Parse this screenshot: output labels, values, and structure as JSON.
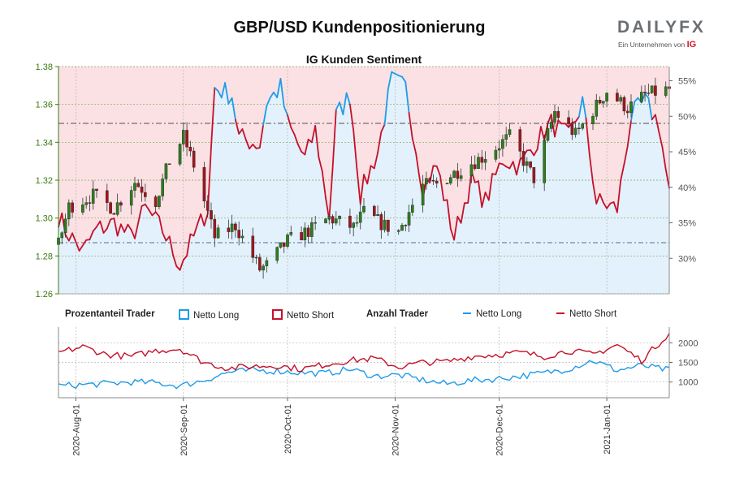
{
  "header": {
    "title": "GBP/USD Kundenpositionierung",
    "subtitle": "IG Kunden Sentiment",
    "logo_word": "DAILYFX",
    "logo_tagline": "Ein Unternehmen von",
    "logo_brand": "IG"
  },
  "legend": {
    "group1_title": "Prozentanteil Trader",
    "pct_long": "Netto Long",
    "pct_short": "Netto Short",
    "group2_title": "Anzahl Trader",
    "cnt_long": "Netto Long",
    "cnt_short": "Netto Short"
  },
  "colors": {
    "long": "#1e9be9",
    "short": "#c5102a",
    "candle_up": "#2e7d1e",
    "candle_down": "#a3141e",
    "long_fill": "#e2f1fb",
    "short_fill": "#fbe1e3",
    "axis_green": "#3a7a10"
  },
  "chart_data": [
    {
      "type": "candlestick",
      "name": "GBP/USD",
      "x_dates": [
        "2020-07-27",
        "2021-01-19"
      ],
      "ylim": [
        1.26,
        1.38
      ],
      "yticks": [
        "1.26",
        "1.28",
        "1.30",
        "1.32",
        "1.34",
        "1.36",
        "1.38"
      ],
      "reference_lines": [
        1.35,
        1.287
      ],
      "anchors": [
        [
          "2020-07-27",
          1.286
        ],
        [
          "2020-07-30",
          1.306
        ],
        [
          "2020-08-06",
          1.312
        ],
        [
          "2020-08-12",
          1.305
        ],
        [
          "2020-08-18",
          1.319
        ],
        [
          "2020-08-24",
          1.309
        ],
        [
          "2020-08-28",
          1.33
        ],
        [
          "2020-09-01",
          1.343
        ],
        [
          "2020-09-04",
          1.328
        ],
        [
          "2020-09-10",
          1.29
        ],
        [
          "2020-09-16",
          1.296
        ],
        [
          "2020-09-23",
          1.273
        ],
        [
          "2020-09-25",
          1.275
        ],
        [
          "2020-10-01",
          1.288
        ],
        [
          "2020-10-08",
          1.294
        ],
        [
          "2020-10-13",
          1.3
        ],
        [
          "2020-10-20",
          1.295
        ],
        [
          "2020-10-23",
          1.303
        ],
        [
          "2020-10-29",
          1.296
        ],
        [
          "2020-11-02",
          1.293
        ],
        [
          "2020-11-09",
          1.317
        ],
        [
          "2020-11-13",
          1.318
        ],
        [
          "2020-11-20",
          1.326
        ],
        [
          "2020-11-27",
          1.333
        ],
        [
          "2020-12-04",
          1.343
        ],
        [
          "2020-12-11",
          1.321
        ],
        [
          "2020-12-17",
          1.356
        ],
        [
          "2020-12-23",
          1.344
        ],
        [
          "2021-01-01",
          1.367
        ],
        [
          "2021-01-07",
          1.358
        ],
        [
          "2021-01-12",
          1.365
        ],
        [
          "2021-01-19",
          1.368
        ]
      ]
    },
    {
      "type": "area",
      "name": "Prozentanteil Trader",
      "unit": "%",
      "ylim": [
        25,
        57
      ],
      "yticks": [
        "30%",
        "35%",
        "40%",
        "45%",
        "50%",
        "55%"
      ],
      "series": [
        {
          "name": "Netto Long",
          "anchors": [
            [
              "2020-07-27",
              36
            ],
            [
              "2020-07-29",
              34
            ],
            [
              "2020-08-03",
              31
            ],
            [
              "2020-08-07",
              34
            ],
            [
              "2020-08-12",
              35
            ],
            [
              "2020-08-17",
              33
            ],
            [
              "2020-08-21",
              37
            ],
            [
              "2020-08-26",
              34
            ],
            [
              "2020-08-31",
              29
            ],
            [
              "2020-09-04",
              33
            ],
            [
              "2020-09-08",
              37
            ],
            [
              "2020-09-10",
              54
            ],
            [
              "2020-09-15",
              53
            ],
            [
              "2020-09-17",
              47
            ],
            [
              "2020-09-23",
              46
            ],
            [
              "2020-09-25",
              52
            ],
            [
              "2020-09-29",
              54
            ],
            [
              "2020-10-01",
              49
            ],
            [
              "2020-10-06",
              44
            ],
            [
              "2020-10-09",
              48
            ],
            [
              "2020-10-13",
              36
            ],
            [
              "2020-10-15",
              50
            ],
            [
              "2020-10-19",
              53
            ],
            [
              "2020-10-22",
              39
            ],
            [
              "2020-10-27",
              45
            ],
            [
              "2020-10-31",
              55
            ],
            [
              "2020-11-04",
              54
            ],
            [
              "2020-11-09",
              40
            ],
            [
              "2020-11-13",
              43
            ],
            [
              "2020-11-18",
              33
            ],
            [
              "2020-11-23",
              41
            ],
            [
              "2020-11-27",
              38
            ],
            [
              "2020-12-02",
              44
            ],
            [
              "2020-12-07",
              43
            ],
            [
              "2020-12-11",
              46
            ],
            [
              "2020-12-16",
              49
            ],
            [
              "2020-12-21",
              47
            ],
            [
              "2020-12-25",
              52
            ],
            [
              "2020-12-29",
              38
            ],
            [
              "2021-01-04",
              37
            ],
            [
              "2021-01-08",
              50
            ],
            [
              "2021-01-12",
              52
            ],
            [
              "2021-01-16",
              49
            ],
            [
              "2021-01-19",
              39
            ]
          ]
        }
      ]
    },
    {
      "type": "line",
      "name": "Anzahl Trader",
      "ylim": [
        600,
        2400
      ],
      "yticks": [
        "1000",
        "1500",
        "2000"
      ],
      "series": [
        {
          "name": "Netto Long",
          "anchors": [
            [
              "2020-07-27",
              900
            ],
            [
              "2020-08-03",
              930
            ],
            [
              "2020-08-10",
              960
            ],
            [
              "2020-08-17",
              1000
            ],
            [
              "2020-08-24",
              980
            ],
            [
              "2020-08-31",
              900
            ],
            [
              "2020-09-07",
              1050
            ],
            [
              "2020-09-14",
              1250
            ],
            [
              "2020-09-21",
              1300
            ],
            [
              "2020-09-28",
              1280
            ],
            [
              "2020-10-05",
              1240
            ],
            [
              "2020-10-12",
              1220
            ],
            [
              "2020-10-19",
              1330
            ],
            [
              "2020-10-26",
              1150
            ],
            [
              "2020-11-02",
              1180
            ],
            [
              "2020-11-09",
              1050
            ],
            [
              "2020-11-16",
              950
            ],
            [
              "2020-11-23",
              1040
            ],
            [
              "2020-11-30",
              1080
            ],
            [
              "2020-12-07",
              1150
            ],
            [
              "2020-12-14",
              1230
            ],
            [
              "2020-12-21",
              1340
            ],
            [
              "2020-12-28",
              1550
            ],
            [
              "2021-01-04",
              1300
            ],
            [
              "2021-01-11",
              1420
            ],
            [
              "2021-01-19",
              1300
            ]
          ]
        },
        {
          "name": "Netto Short",
          "anchors": [
            [
              "2020-07-27",
              1750
            ],
            [
              "2020-08-03",
              1900
            ],
            [
              "2020-08-10",
              1700
            ],
            [
              "2020-08-17",
              1650
            ],
            [
              "2020-08-24",
              1800
            ],
            [
              "2020-08-31",
              1850
            ],
            [
              "2020-09-07",
              1500
            ],
            [
              "2020-09-14",
              1350
            ],
            [
              "2020-09-21",
              1400
            ],
            [
              "2020-09-28",
              1420
            ],
            [
              "2020-10-05",
              1330
            ],
            [
              "2020-10-12",
              1450
            ],
            [
              "2020-10-19",
              1550
            ],
            [
              "2020-10-26",
              1600
            ],
            [
              "2020-11-02",
              1380
            ],
            [
              "2020-11-09",
              1500
            ],
            [
              "2020-11-16",
              1520
            ],
            [
              "2020-11-23",
              1650
            ],
            [
              "2020-11-30",
              1700
            ],
            [
              "2020-12-07",
              1750
            ],
            [
              "2020-12-14",
              1650
            ],
            [
              "2020-12-21",
              1800
            ],
            [
              "2020-12-28",
              1700
            ],
            [
              "2021-01-04",
              1950
            ],
            [
              "2021-01-11",
              1550
            ],
            [
              "2021-01-19",
              2250
            ]
          ]
        }
      ]
    }
  ],
  "x_axis": {
    "labels": [
      {
        "date": "2020-08-01",
        "label": "2020-Aug-01"
      },
      {
        "date": "2020-09-01",
        "label": "2020-Sep-01"
      },
      {
        "date": "2020-10-01",
        "label": "2020-Oct-01"
      },
      {
        "date": "2020-11-01",
        "label": "2020-Nov-01"
      },
      {
        "date": "2020-12-01",
        "label": "2020-Dec-01"
      },
      {
        "date": "2021-01-01",
        "label": "2021-Jan-01"
      }
    ]
  }
}
